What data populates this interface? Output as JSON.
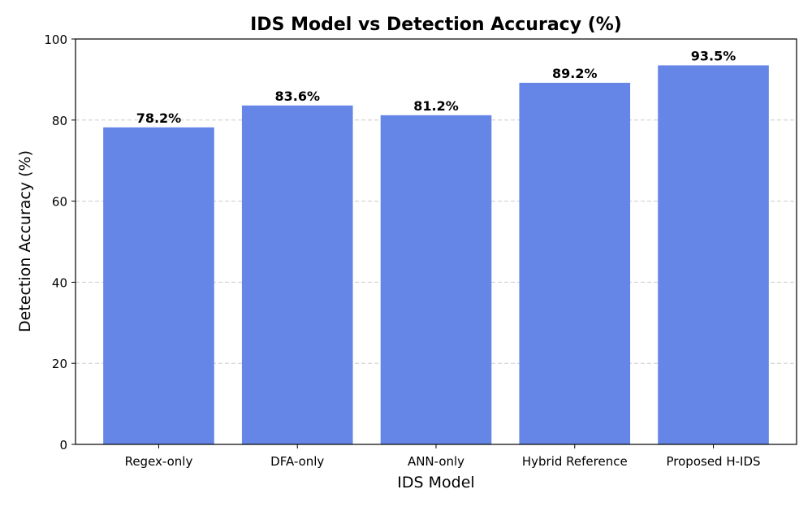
{
  "chart_data": {
    "type": "bar",
    "title": "IDS Model vs Detection Accuracy (%)",
    "xlabel": "IDS Model",
    "ylabel": "Detection Accuracy (%)",
    "categories": [
      "Regex-only",
      "DFA-only",
      "ANN-only",
      "Hybrid Reference",
      "Proposed H-IDS"
    ],
    "values": [
      78.2,
      83.6,
      81.2,
      89.2,
      93.5
    ],
    "data_labels": [
      "78.2%",
      "83.6%",
      "81.2%",
      "89.2%",
      "93.5%"
    ],
    "ylim": [
      0,
      100
    ],
    "yticks": [
      "0",
      "20",
      "40",
      "60",
      "80",
      "100"
    ],
    "grid": "y-dashed",
    "bar_color": "#6586e6",
    "grid_color": "#cccccc"
  }
}
